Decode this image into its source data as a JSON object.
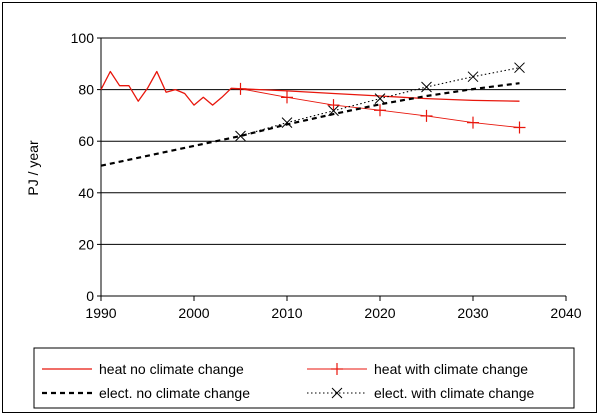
{
  "chart_data": {
    "type": "line",
    "title": "",
    "xlabel": "",
    "ylabel": "PJ / year",
    "xlim": [
      1990,
      2040
    ],
    "ylim": [
      0,
      100
    ],
    "xticks": [
      1990,
      2000,
      2010,
      2020,
      2030,
      2040
    ],
    "yticks": [
      0,
      20,
      40,
      60,
      80,
      100
    ],
    "xtick_labels": [
      "1990",
      "2000",
      "2010",
      "2020",
      "2030",
      "2040"
    ],
    "ytick_labels": [
      "0",
      "20",
      "40",
      "60",
      "80",
      "100"
    ],
    "grid": "horizontal",
    "legend_position": "bottom",
    "series": [
      {
        "name": "heat no climate change",
        "color": "#e8160c",
        "style": "solid",
        "marker": "none",
        "x": [
          1990,
          1991,
          1992,
          1993,
          1994,
          1995,
          1996,
          1997,
          1998,
          1999,
          2000,
          2001,
          2002,
          2003,
          2004,
          2005,
          2010,
          2015,
          2020,
          2025,
          2030,
          2035
        ],
        "y": [
          80,
          87,
          81.5,
          81.5,
          75.5,
          80.5,
          87,
          79,
          80,
          78.5,
          74,
          77,
          74,
          77,
          80.5,
          80.3,
          79.5,
          78.5,
          77.5,
          76.5,
          75.8,
          75.5
        ]
      },
      {
        "name": "heat with climate change",
        "color": "#e8160c",
        "style": "solid-thin",
        "marker": "plus",
        "x": [
          2005,
          2010,
          2015,
          2020,
          2025,
          2030,
          2035
        ],
        "y": [
          80.3,
          77,
          74,
          72,
          69.8,
          67.2,
          65.3
        ]
      },
      {
        "name": "elect. no climate change",
        "color": "#000000",
        "style": "dashed",
        "marker": "none",
        "x": [
          1990,
          2005,
          2010,
          2015,
          2020,
          2025,
          2030,
          2035
        ],
        "y": [
          50.5,
          62,
          66.5,
          70.5,
          74.3,
          77.5,
          80.2,
          82.5
        ]
      },
      {
        "name": "elect. with climate change",
        "color": "#000000",
        "style": "dotted",
        "marker": "x",
        "x": [
          2005,
          2010,
          2015,
          2020,
          2025,
          2030,
          2035
        ],
        "y": [
          62,
          67.2,
          71.8,
          76.5,
          81,
          85,
          88.5
        ]
      }
    ]
  }
}
